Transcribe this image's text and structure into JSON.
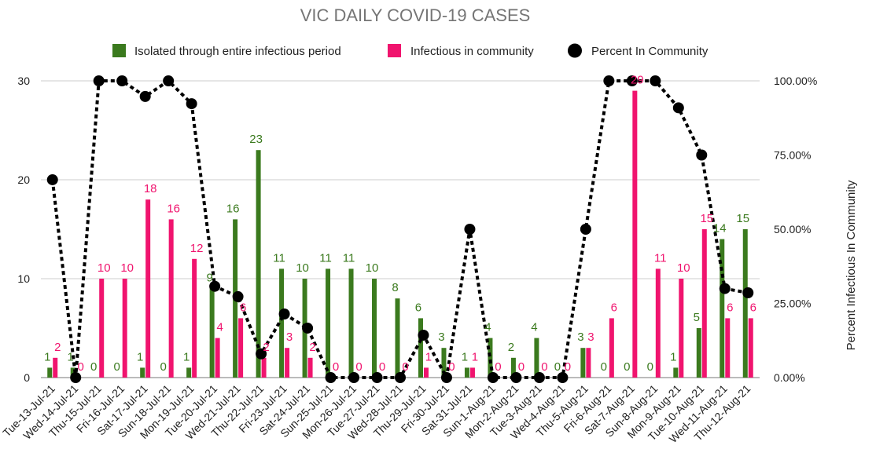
{
  "chart_data": {
    "type": "bar+line",
    "title": "VIC DAILY COVID-19 CASES",
    "y2label": "Percent Infectious In Community",
    "ylim": [
      0,
      30
    ],
    "y_ticks": [
      "0",
      "10",
      "20",
      "30"
    ],
    "y2lim": [
      0,
      100
    ],
    "y2_ticks": [
      "0.00%",
      "25.00%",
      "50.00%",
      "75.00%",
      "100.00%"
    ],
    "legend_position": "top",
    "grid": true,
    "colors": {
      "isolated": "#3b7a1e",
      "community": "#f0146e",
      "percent": "#000000"
    },
    "categories": [
      "Tue-13-Jul-21",
      "Wed-14-Jul-21",
      "Thu-15-Jul-21",
      "Fri-16-Jul-21",
      "Sat-17-Jul-21",
      "Sun-18-Jul-21",
      "Mon-19-Jul-21",
      "Tue-20-Jul-21",
      "Wed-21-Jul-21",
      "Thu-22-Jul-21",
      "Fri-23-Jul-21",
      "Sat-24-Jul-21",
      "Sun-25-Jul-21",
      "Mon-26-Jul-21",
      "Tue-27-Jul-21",
      "Wed-28-Jul-21",
      "Thu-29-Jul-21",
      "Fri-30-Jul-21",
      "Sat-31-Jul-21",
      "Sun-1-Aug-21",
      "Mon-2-Aug-21",
      "Tue-3-Aug-21",
      "Wed-4-Aug-21",
      "Thu-5-Aug-21",
      "Fri-6-Aug-21",
      "Sat-7-Aug-21",
      "Sun-8-Aug-21",
      "Mon-9-Aug-21",
      "Tue-10-Aug-21",
      "Wed-11-Aug-21",
      "Thu-12-Aug-21"
    ],
    "series": [
      {
        "name": "Isolated through entire infectious period",
        "type": "bar",
        "values": [
          1,
          1,
          0,
          0,
          1,
          0,
          1,
          9,
          16,
          23,
          11,
          10,
          11,
          11,
          10,
          8,
          6,
          3,
          1,
          4,
          2,
          4,
          0,
          3,
          0,
          0,
          0,
          1,
          5,
          14,
          15
        ]
      },
      {
        "name": "Infectious in community",
        "type": "bar",
        "values": [
          2,
          0,
          10,
          10,
          18,
          16,
          12,
          4,
          6,
          2,
          3,
          2,
          0,
          0,
          0,
          0,
          1,
          0,
          1,
          0,
          0,
          0,
          0,
          3,
          6,
          29,
          11,
          10,
          15,
          6,
          6
        ]
      },
      {
        "name": "Percent In Community",
        "type": "line",
        "axis": "right",
        "values": [
          66.67,
          0,
          100,
          100,
          94.74,
          100,
          92.31,
          30.77,
          27.27,
          8,
          21.43,
          16.67,
          0,
          0,
          0,
          0,
          14.29,
          0,
          50,
          0,
          0,
          0,
          0,
          50,
          100,
          100,
          100,
          90.91,
          75,
          30,
          28.57
        ]
      }
    ]
  }
}
